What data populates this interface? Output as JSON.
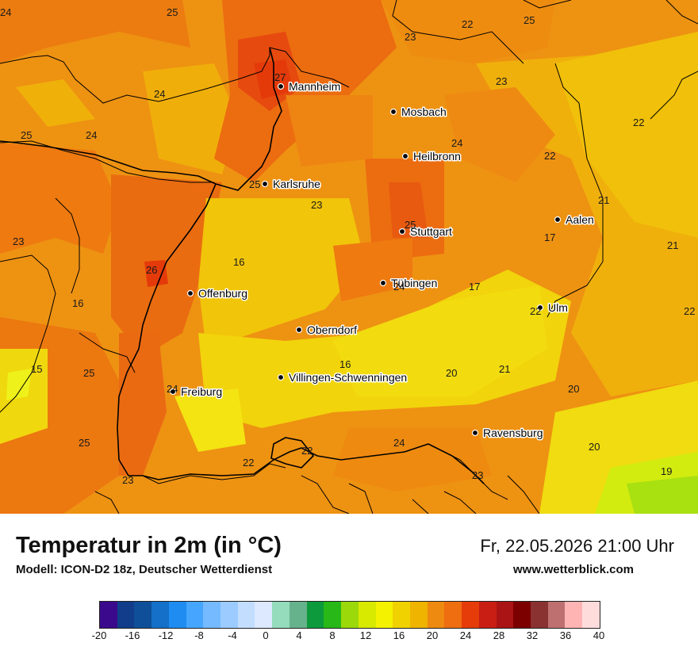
{
  "map": {
    "cities": [
      {
        "name": "Mannheim"
      },
      {
        "name": "Mosbach"
      },
      {
        "name": "Heilbronn"
      },
      {
        "name": "Karlsruhe"
      },
      {
        "name": "Aalen"
      },
      {
        "name": "Stuttgart"
      },
      {
        "name": "Offenburg"
      },
      {
        "name": "Tübingen"
      },
      {
        "name": "Ulm"
      },
      {
        "name": "Oberndorf"
      },
      {
        "name": "Villingen-Schwenningen"
      },
      {
        "name": "Freiburg"
      },
      {
        "name": "Ravensburg"
      }
    ],
    "temperature_labels": [
      "24",
      "25",
      "22",
      "25",
      "23",
      "27",
      "24",
      "24",
      "25",
      "23",
      "22",
      "24",
      "22",
      "25",
      "23",
      "21",
      "21",
      "23",
      "25",
      "17",
      "16",
      "26",
      "24",
      "17",
      "16",
      "22",
      "22",
      "16",
      "15",
      "25",
      "20",
      "21",
      "24",
      "20",
      "24",
      "22",
      "22",
      "20",
      "25",
      "23",
      "23",
      "19"
    ]
  },
  "footer": {
    "title": "Temperatur in 2m (in °C)",
    "model": "Modell: ICON-D2 18z, Deutscher Wetterdienst",
    "datetime": "Fr, 22.05.2026 21:00 Uhr",
    "site": "www.wetterblick.com"
  },
  "colorbar": {
    "ticks": [
      "-20",
      "-16",
      "-12",
      "-8",
      "-4",
      "0",
      "4",
      "8",
      "12",
      "16",
      "20",
      "24",
      "28",
      "32",
      "36",
      "40"
    ],
    "colors": [
      "#3b0a8c",
      "#113d8a",
      "#0f4f9a",
      "#1470c8",
      "#1e8cf0",
      "#46a6ff",
      "#75baff",
      "#9bcbff",
      "#c3ddff",
      "#dde9ff",
      "#94dcbc",
      "#66b28c",
      "#0c9a3c",
      "#28b818",
      "#9bd90a",
      "#d7ea00",
      "#f5f200",
      "#f0d200",
      "#efb400",
      "#ef8a10",
      "#ee6e10",
      "#e63c0a",
      "#c81e14",
      "#aa1414",
      "#7d0000",
      "#8a3232",
      "#be7070",
      "#ffb4b4",
      "#ffdcdc"
    ]
  }
}
